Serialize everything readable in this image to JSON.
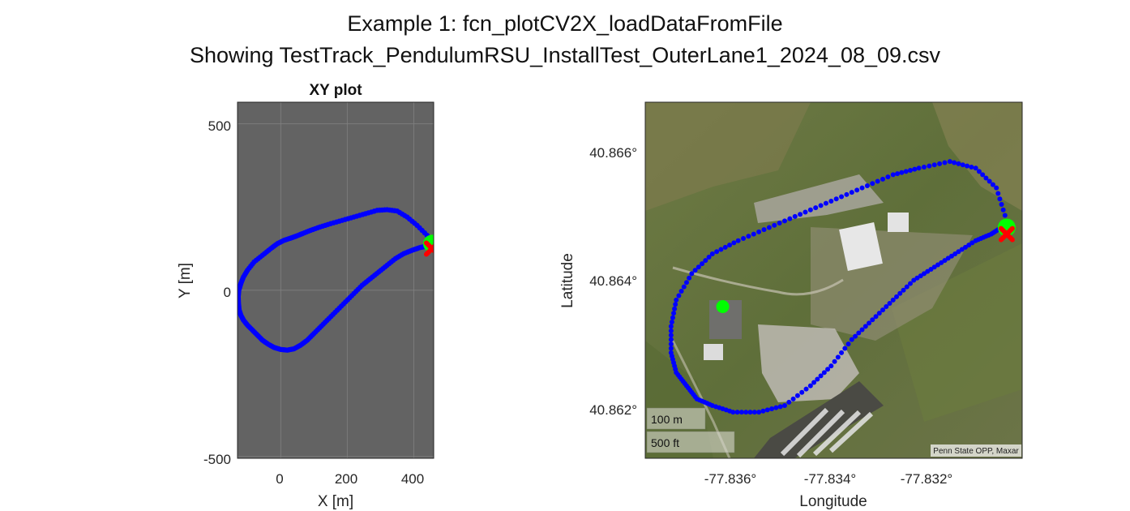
{
  "figure": {
    "title_line1": "Example 1: fcn_plotCV2X_loadDataFromFile",
    "title_line2": "Showing TestTrack_PendulumRSU_InstallTest_OuterLane1_2024_08_09.csv"
  },
  "chart_data": [
    {
      "type": "scatter",
      "title": "XY plot",
      "xlabel": "X [m]",
      "ylabel": "Y [m]",
      "xlim": [
        -130,
        460
      ],
      "ylim": [
        -505,
        565
      ],
      "xticks": [
        "0",
        "200",
        "400"
      ],
      "yticks": [
        "500",
        "0",
        "-500"
      ],
      "background": "#636363",
      "grid": true,
      "series": [
        {
          "color": "#0000ff",
          "x": [
            460,
            440,
            410,
            380,
            350,
            320,
            290,
            255,
            220,
            185,
            150,
            118,
            90,
            65,
            45,
            28,
            10,
            -10,
            -30,
            -55,
            -80,
            -100,
            -112,
            -120,
            -126,
            -128,
            -127,
            -125,
            -120,
            -112,
            -100,
            -85,
            -70,
            -55,
            -38,
            -20,
            0,
            20,
            40,
            60,
            80,
            100,
            122,
            145,
            170,
            195,
            220,
            245,
            270,
            295,
            320,
            345,
            370,
            395,
            418,
            438,
            452
          ],
          "y": [
            138,
            165,
            195,
            220,
            238,
            242,
            240,
            230,
            220,
            210,
            200,
            190,
            180,
            170,
            162,
            156,
            150,
            140,
            125,
            105,
            85,
            60,
            40,
            20,
            0,
            -20,
            -40,
            -60,
            -75,
            -90,
            -105,
            -120,
            -135,
            -150,
            -162,
            -172,
            -178,
            -180,
            -176,
            -165,
            -150,
            -130,
            -108,
            -85,
            -60,
            -35,
            -10,
            15,
            35,
            55,
            75,
            95,
            110,
            120,
            128,
            132,
            135
          ]
        },
        {
          "name": "",
          "color": "#00ff00",
          "x": [
            455
          ],
          "y": [
            140
          ]
        },
        {
          "name": "",
          "color": "#ff0000",
          "x": [
            455
          ],
          "y": [
            125
          ]
        }
      ]
    },
    {
      "type": "scatter",
      "title": "",
      "xlabel": "Longitude",
      "ylabel": "Latitude",
      "xlim": [
        -77.8375,
        -77.8302
      ],
      "ylim": [
        40.8614,
        40.8668
      ],
      "xticks": [
        "-77.836°",
        "-77.834°",
        "-77.832°"
      ],
      "yticks": [
        "40.866°",
        "40.864°",
        "40.862°"
      ],
      "basemap": "satellite",
      "scalebar": [
        "100 m",
        "500 ft"
      ],
      "attribution": "Penn State OPP, Maxar",
      "series": [
        {
          "color": "#0000ff",
          "lon": [
            -77.8305,
            -77.8307,
            -77.8311,
            -77.8316,
            -77.8322,
            -77.8327,
            -77.8333,
            -77.8339,
            -77.8345,
            -77.8351,
            -77.8357,
            -77.8362,
            -77.8366,
            -77.8369,
            -77.837,
            -77.837,
            -77.8369,
            -77.8367,
            -77.8365,
            -77.8362,
            -77.8358,
            -77.8353,
            -77.8348,
            -77.8343,
            -77.8339,
            -77.8335,
            -77.8331,
            -77.8327,
            -77.8323,
            -77.8319,
            -77.8315,
            -77.8311,
            -77.8308,
            -77.8306
          ],
          "lat": [
            40.865,
            40.8655,
            40.8658,
            40.8659,
            40.8658,
            40.8657,
            40.8655,
            40.8653,
            40.8651,
            40.8649,
            40.8647,
            40.8645,
            40.8642,
            40.8638,
            40.8634,
            40.863,
            40.8627,
            40.8625,
            40.8623,
            40.8622,
            40.8621,
            40.8621,
            40.8622,
            40.8625,
            40.8628,
            40.8632,
            40.8635,
            40.8638,
            40.8641,
            40.8643,
            40.8645,
            40.8647,
            40.8648,
            40.8649
          ]
        },
        {
          "name": "",
          "color": "#00ff00",
          "lon": [
            -77.8305,
            -77.836
          ],
          "lat": [
            40.8649,
            40.8637
          ]
        },
        {
          "name": "",
          "color": "#ff0000",
          "lon": [
            -77.8305
          ],
          "lat": [
            40.8648
          ]
        }
      ]
    }
  ]
}
